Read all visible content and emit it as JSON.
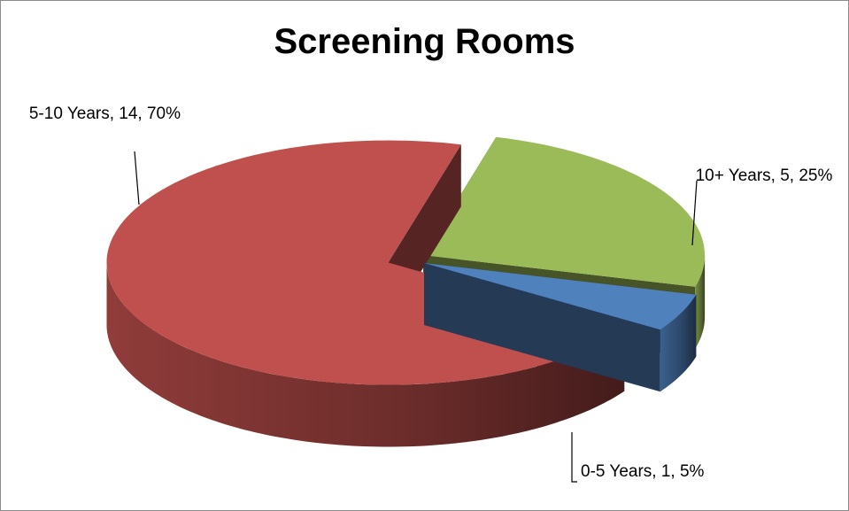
{
  "chart_data": {
    "type": "pie",
    "title": "Screening Rooms",
    "values": [
      5,
      1,
      14
    ],
    "value_labels": [
      "10+ Years, 5, 25%",
      "0-5 Years, 1, 5%",
      "5-10 Years, 14, 70%"
    ],
    "colors": [
      "#9bbb59",
      "#4f81bd",
      "#c0504d"
    ]
  }
}
